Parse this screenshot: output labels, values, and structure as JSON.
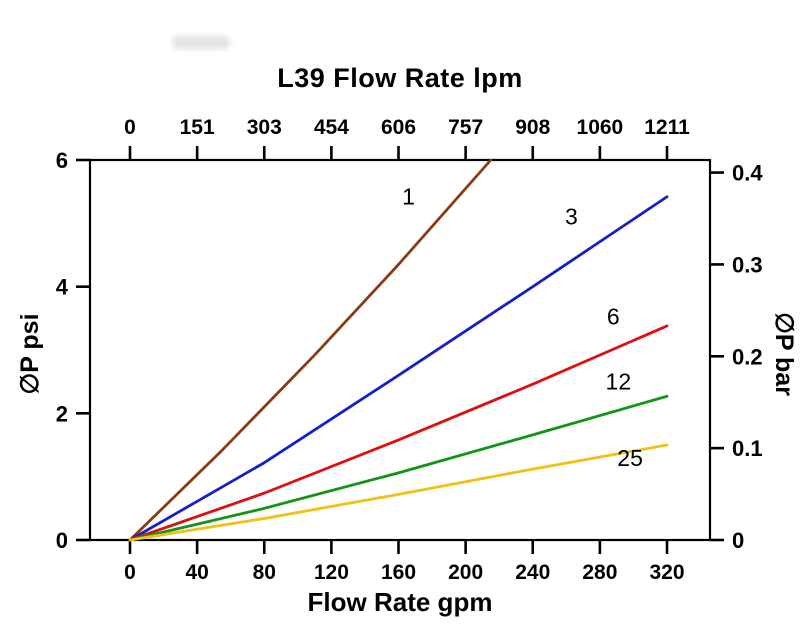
{
  "page": {
    "background": "#ffffff",
    "text_color": "#000000"
  },
  "chart_data": {
    "type": "line",
    "title_top": "L39 Flow Rate lpm",
    "xlabel_bottom": "Flow Rate gpm",
    "ylabel_left": "∅P psi",
    "ylabel_right": "∅P bar",
    "xlim": [
      0,
      320
    ],
    "ylim_psi": [
      0,
      6
    ],
    "psi_to_bar": 0.0689476,
    "grid": false,
    "legend": "inline-labels-on-lines",
    "x_bottom_ticks": [
      0,
      40,
      80,
      120,
      160,
      200,
      240,
      280,
      320
    ],
    "x_top_ticks": [
      "0",
      "151",
      "303",
      "454",
      "606",
      "757",
      "908",
      "1060",
      "1211"
    ],
    "y_left_ticks": [
      0,
      2,
      4,
      6
    ],
    "y_right_ticks": [
      {
        "label": "0",
        "bar": 0.0
      },
      {
        "label": "0.1",
        "bar": 0.1
      },
      {
        "label": "0.2",
        "bar": 0.2
      },
      {
        "label": "0.3",
        "bar": 0.3
      },
      {
        "label": "0.4",
        "bar": 0.4
      }
    ],
    "series": [
      {
        "name": "1",
        "color": "#8b3b10",
        "points": [
          [
            0,
            0
          ],
          [
            55,
            1.42
          ],
          [
            110,
            2.92
          ],
          [
            160,
            4.35
          ],
          [
            215,
            6.0
          ]
        ],
        "label_at": [
          166,
          5.3
        ]
      },
      {
        "name": "3",
        "color": "#1520cc",
        "points": [
          [
            0,
            0
          ],
          [
            80,
            1.22
          ],
          [
            160,
            2.6
          ],
          [
            240,
            4.0
          ],
          [
            320,
            5.42
          ]
        ],
        "label_at": [
          263,
          4.98
        ]
      },
      {
        "name": "6",
        "color": "#de0f0f",
        "points": [
          [
            0,
            0
          ],
          [
            80,
            0.74
          ],
          [
            160,
            1.58
          ],
          [
            240,
            2.46
          ],
          [
            320,
            3.38
          ]
        ],
        "label_at": [
          288,
          3.4
        ]
      },
      {
        "name": "12",
        "color": "#149414",
        "points": [
          [
            0,
            0
          ],
          [
            80,
            0.5
          ],
          [
            160,
            1.06
          ],
          [
            240,
            1.66
          ],
          [
            320,
            2.27
          ]
        ],
        "label_at": [
          291,
          2.38
        ]
      },
      {
        "name": "25",
        "color": "#f2c115",
        "points": [
          [
            0,
            0
          ],
          [
            80,
            0.34
          ],
          [
            160,
            0.72
          ],
          [
            240,
            1.12
          ],
          [
            320,
            1.5
          ]
        ],
        "label_at": [
          298,
          1.17
        ]
      }
    ]
  }
}
